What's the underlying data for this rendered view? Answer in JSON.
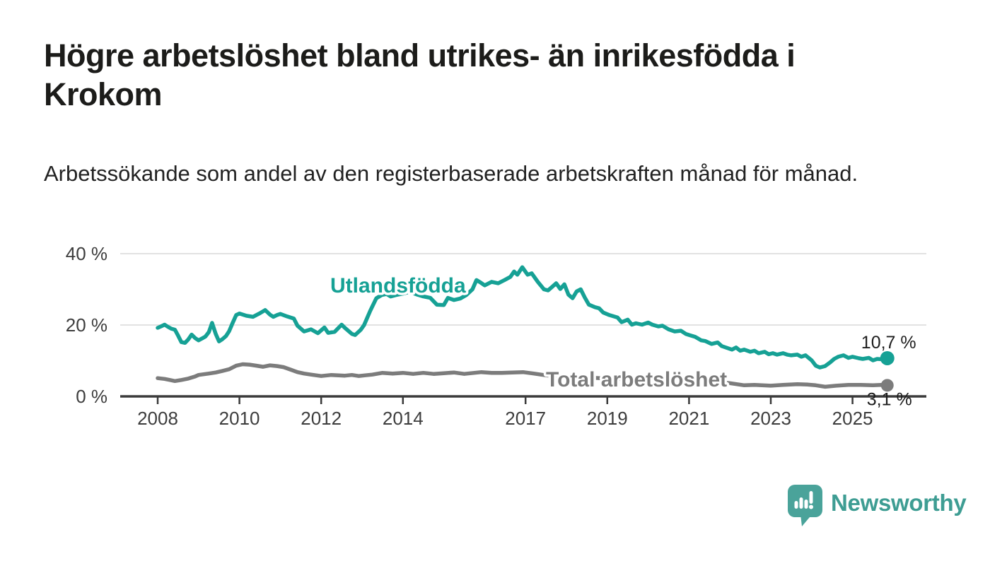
{
  "title": "Högre arbetslöshet bland utrikes- än inrikesfödda i Krokom",
  "subtitle": "Arbetssökande som andel av den registerbaserade arbetskraften månad för månad.",
  "chart_data": {
    "type": "line",
    "unit": "%",
    "grid": "horizontal",
    "legend": "inline-labels",
    "x_axis": {
      "ticks": [
        {
          "value": 2008,
          "label": "2008"
        },
        {
          "value": 2010,
          "label": "2010"
        },
        {
          "value": 2012,
          "label": "2012"
        },
        {
          "value": 2014,
          "label": "2014"
        },
        {
          "value": 2017,
          "label": "2017"
        },
        {
          "value": 2019,
          "label": "2019"
        },
        {
          "value": 2021,
          "label": "2021"
        },
        {
          "value": 2023,
          "label": "2023"
        },
        {
          "value": 2025,
          "label": "2025"
        }
      ]
    },
    "y_axis": {
      "ticks": [
        {
          "value": 0,
          "label": "0 %"
        },
        {
          "value": 20,
          "label": "20 %"
        },
        {
          "value": 40,
          "label": "40 %"
        }
      ],
      "range": [
        0,
        42
      ]
    },
    "series": [
      {
        "id": "utlandsfodda",
        "name": "Utlandsfödda",
        "color": "#16a195",
        "end_label": "10,7 %",
        "points": [
          [
            2008.0,
            19.2
          ],
          [
            2008.08,
            19.6
          ],
          [
            2008.17,
            20.1
          ],
          [
            2008.25,
            19.5
          ],
          [
            2008.33,
            19.0
          ],
          [
            2008.42,
            18.7
          ],
          [
            2008.5,
            17.0
          ],
          [
            2008.58,
            15.2
          ],
          [
            2008.67,
            15.0
          ],
          [
            2008.75,
            16.0
          ],
          [
            2008.83,
            17.3
          ],
          [
            2008.92,
            16.3
          ],
          [
            2009.0,
            15.7
          ],
          [
            2009.08,
            16.2
          ],
          [
            2009.17,
            16.8
          ],
          [
            2009.25,
            18.0
          ],
          [
            2009.33,
            20.6
          ],
          [
            2009.42,
            17.5
          ],
          [
            2009.5,
            15.4
          ],
          [
            2009.58,
            16.0
          ],
          [
            2009.67,
            16.9
          ],
          [
            2009.75,
            18.3
          ],
          [
            2009.83,
            20.5
          ],
          [
            2009.92,
            22.8
          ],
          [
            2010.0,
            23.2
          ],
          [
            2010.17,
            22.6
          ],
          [
            2010.33,
            22.3
          ],
          [
            2010.5,
            23.3
          ],
          [
            2010.63,
            24.2
          ],
          [
            2010.75,
            22.9
          ],
          [
            2010.83,
            22.3
          ],
          [
            2010.92,
            22.8
          ],
          [
            2011.0,
            23.1
          ],
          [
            2011.17,
            22.4
          ],
          [
            2011.33,
            21.8
          ],
          [
            2011.42,
            19.8
          ],
          [
            2011.58,
            18.2
          ],
          [
            2011.75,
            18.8
          ],
          [
            2011.92,
            17.7
          ],
          [
            2012.08,
            19.3
          ],
          [
            2012.17,
            17.8
          ],
          [
            2012.33,
            18.1
          ],
          [
            2012.5,
            20.1
          ],
          [
            2012.58,
            19.2
          ],
          [
            2012.75,
            17.5
          ],
          [
            2012.83,
            17.2
          ],
          [
            2012.97,
            18.7
          ],
          [
            2013.05,
            20.0
          ],
          [
            2013.2,
            24.0
          ],
          [
            2013.35,
            27.5
          ],
          [
            2013.48,
            28.4
          ],
          [
            2013.6,
            28.7
          ],
          [
            2013.7,
            28.0
          ],
          [
            2013.83,
            28.4
          ],
          [
            2014.0,
            28.8
          ],
          [
            2014.17,
            29.3
          ],
          [
            2014.33,
            28.6
          ],
          [
            2014.5,
            28.0
          ],
          [
            2014.67,
            27.6
          ],
          [
            2014.83,
            25.7
          ],
          [
            2015.0,
            25.6
          ],
          [
            2015.1,
            27.6
          ],
          [
            2015.25,
            27.0
          ],
          [
            2015.4,
            27.4
          ],
          [
            2015.55,
            28.4
          ],
          [
            2015.7,
            30.0
          ],
          [
            2015.8,
            32.6
          ],
          [
            2015.9,
            31.9
          ],
          [
            2016.0,
            31.1
          ],
          [
            2016.17,
            32.1
          ],
          [
            2016.33,
            31.7
          ],
          [
            2016.5,
            32.7
          ],
          [
            2016.63,
            33.5
          ],
          [
            2016.72,
            35.0
          ],
          [
            2016.8,
            34.1
          ],
          [
            2016.92,
            36.2
          ],
          [
            2017.05,
            34.1
          ],
          [
            2017.15,
            34.5
          ],
          [
            2017.3,
            32.1
          ],
          [
            2017.45,
            30.0
          ],
          [
            2017.55,
            29.7
          ],
          [
            2017.65,
            30.7
          ],
          [
            2017.75,
            31.7
          ],
          [
            2017.85,
            30.1
          ],
          [
            2017.95,
            31.4
          ],
          [
            2018.05,
            28.5
          ],
          [
            2018.15,
            27.5
          ],
          [
            2018.25,
            29.4
          ],
          [
            2018.35,
            30.0
          ],
          [
            2018.45,
            27.7
          ],
          [
            2018.55,
            25.7
          ],
          [
            2018.7,
            25.0
          ],
          [
            2018.8,
            24.7
          ],
          [
            2018.9,
            23.5
          ],
          [
            2019.05,
            22.8
          ],
          [
            2019.25,
            22.1
          ],
          [
            2019.35,
            20.8
          ],
          [
            2019.5,
            21.5
          ],
          [
            2019.6,
            20.1
          ],
          [
            2019.7,
            20.5
          ],
          [
            2019.85,
            20.1
          ],
          [
            2020.0,
            20.7
          ],
          [
            2020.1,
            20.1
          ],
          [
            2020.25,
            19.6
          ],
          [
            2020.35,
            19.8
          ],
          [
            2020.5,
            18.8
          ],
          [
            2020.65,
            18.2
          ],
          [
            2020.8,
            18.4
          ],
          [
            2020.92,
            17.5
          ],
          [
            2021.0,
            17.2
          ],
          [
            2021.15,
            16.7
          ],
          [
            2021.3,
            15.7
          ],
          [
            2021.4,
            15.5
          ],
          [
            2021.55,
            14.7
          ],
          [
            2021.7,
            15.1
          ],
          [
            2021.8,
            14.1
          ],
          [
            2021.95,
            13.5
          ],
          [
            2022.05,
            13.1
          ],
          [
            2022.15,
            13.7
          ],
          [
            2022.25,
            12.8
          ],
          [
            2022.35,
            13.1
          ],
          [
            2022.5,
            12.5
          ],
          [
            2022.6,
            12.8
          ],
          [
            2022.7,
            12.1
          ],
          [
            2022.85,
            12.5
          ],
          [
            2022.95,
            11.8
          ],
          [
            2023.05,
            12.1
          ],
          [
            2023.15,
            11.7
          ],
          [
            2023.3,
            12.1
          ],
          [
            2023.4,
            11.7
          ],
          [
            2023.5,
            11.5
          ],
          [
            2023.65,
            11.7
          ],
          [
            2023.75,
            11.1
          ],
          [
            2023.85,
            11.5
          ],
          [
            2024.0,
            10.1
          ],
          [
            2024.1,
            8.6
          ],
          [
            2024.2,
            8.1
          ],
          [
            2024.33,
            8.5
          ],
          [
            2024.45,
            9.5
          ],
          [
            2024.55,
            10.5
          ],
          [
            2024.65,
            11.1
          ],
          [
            2024.78,
            11.5
          ],
          [
            2024.9,
            10.8
          ],
          [
            2025.0,
            11.1
          ],
          [
            2025.15,
            10.7
          ],
          [
            2025.25,
            10.5
          ],
          [
            2025.4,
            10.8
          ],
          [
            2025.5,
            10.1
          ],
          [
            2025.6,
            10.5
          ],
          [
            2025.72,
            10.4
          ],
          [
            2025.85,
            10.7
          ]
        ]
      },
      {
        "id": "total",
        "name": "Total arbetslöshet",
        "color": "#7c7c7c",
        "end_label": "3,1 %",
        "points": [
          [
            2008.0,
            5.1
          ],
          [
            2008.17,
            4.9
          ],
          [
            2008.3,
            4.6
          ],
          [
            2008.42,
            4.3
          ],
          [
            2008.58,
            4.6
          ],
          [
            2008.75,
            5.0
          ],
          [
            2008.92,
            5.6
          ],
          [
            2009.0,
            6.0
          ],
          [
            2009.25,
            6.4
          ],
          [
            2009.42,
            6.7
          ],
          [
            2009.58,
            7.1
          ],
          [
            2009.75,
            7.6
          ],
          [
            2009.92,
            8.6
          ],
          [
            2010.08,
            9.0
          ],
          [
            2010.25,
            8.9
          ],
          [
            2010.42,
            8.6
          ],
          [
            2010.58,
            8.3
          ],
          [
            2010.75,
            8.7
          ],
          [
            2010.92,
            8.5
          ],
          [
            2011.08,
            8.2
          ],
          [
            2011.25,
            7.5
          ],
          [
            2011.42,
            6.8
          ],
          [
            2011.58,
            6.4
          ],
          [
            2011.75,
            6.1
          ],
          [
            2012.0,
            5.7
          ],
          [
            2012.25,
            6.0
          ],
          [
            2012.42,
            5.9
          ],
          [
            2012.58,
            5.8
          ],
          [
            2012.75,
            6.0
          ],
          [
            2012.92,
            5.7
          ],
          [
            2013.08,
            5.9
          ],
          [
            2013.25,
            6.1
          ],
          [
            2013.5,
            6.6
          ],
          [
            2013.75,
            6.4
          ],
          [
            2014.0,
            6.6
          ],
          [
            2014.25,
            6.3
          ],
          [
            2014.5,
            6.6
          ],
          [
            2014.75,
            6.3
          ],
          [
            2015.0,
            6.5
          ],
          [
            2015.25,
            6.7
          ],
          [
            2015.5,
            6.3
          ],
          [
            2015.75,
            6.6
          ],
          [
            2015.92,
            6.8
          ],
          [
            2016.17,
            6.6
          ],
          [
            2016.42,
            6.6
          ],
          [
            2016.67,
            6.7
          ],
          [
            2016.94,
            6.8
          ],
          [
            2017.2,
            6.4
          ],
          [
            2017.5,
            5.9
          ],
          [
            2017.75,
            5.7
          ],
          [
            2018.0,
            5.6
          ],
          [
            2018.5,
            5.3
          ],
          [
            2019.0,
            5.0
          ],
          [
            2019.5,
            4.8
          ],
          [
            2020.0,
            5.1
          ],
          [
            2020.4,
            5.4
          ],
          [
            2020.8,
            5.1
          ],
          [
            2021.0,
            4.8
          ],
          [
            2021.5,
            4.3
          ],
          [
            2022.0,
            3.7
          ],
          [
            2022.35,
            3.1
          ],
          [
            2022.6,
            3.2
          ],
          [
            2023.0,
            3.0
          ],
          [
            2023.3,
            3.2
          ],
          [
            2023.65,
            3.4
          ],
          [
            2023.9,
            3.3
          ],
          [
            2024.1,
            3.1
          ],
          [
            2024.33,
            2.7
          ],
          [
            2024.6,
            3.0
          ],
          [
            2024.9,
            3.2
          ],
          [
            2025.2,
            3.2
          ],
          [
            2025.5,
            3.1
          ],
          [
            2025.7,
            3.2
          ],
          [
            2025.85,
            3.1
          ]
        ]
      }
    ]
  },
  "branding": {
    "logo_text": "Newsworthy",
    "logo_icon": "newsworthy-speech-bubble-bar-chart-icon",
    "logo_color": "#4aa39a"
  },
  "colors": {
    "accent_teal": "#16a195",
    "series_gray": "#7c7c7c",
    "title_text": "#1c1c1a",
    "axis_line": "#3a3a3a",
    "gridline": "#d9d9d9",
    "tick_text": "#3d3d3d",
    "end_label_text": "#1d1d1d",
    "background": "#ffffff"
  }
}
